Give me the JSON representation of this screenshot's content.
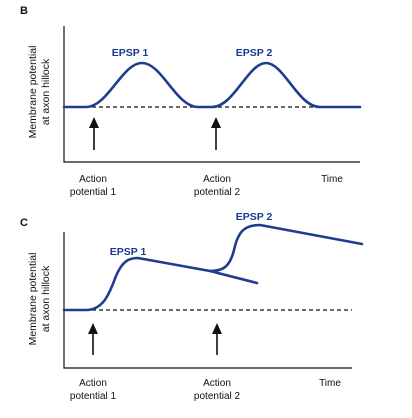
{
  "panels": [
    {
      "letter": "B",
      "ylabel_line1": "Membrane potential",
      "ylabel_line2": "at axon hillock",
      "epsp1_label": "EPSP 1",
      "epsp2_label": "EPSP 2",
      "x_labels": {
        "ap1_line1": "Action",
        "ap1_line2": "potential 1",
        "ap2_line1": "Action",
        "ap2_line2": "potential 2",
        "time": "Time"
      }
    },
    {
      "letter": "C",
      "ylabel_line1": "Membrane potential",
      "ylabel_line2": "at axon hillock",
      "epsp1_label": "EPSP 1",
      "epsp2_label": "EPSP 2",
      "x_labels": {
        "ap1_line1": "Action",
        "ap1_line2": "potential 1",
        "ap2_line1": "Action",
        "ap2_line2": "potential 2",
        "time": "Time"
      }
    }
  ],
  "colors": {
    "trace": "#1f3c8f",
    "trace_label": "#1a3a8c",
    "axis": "#111111"
  }
}
